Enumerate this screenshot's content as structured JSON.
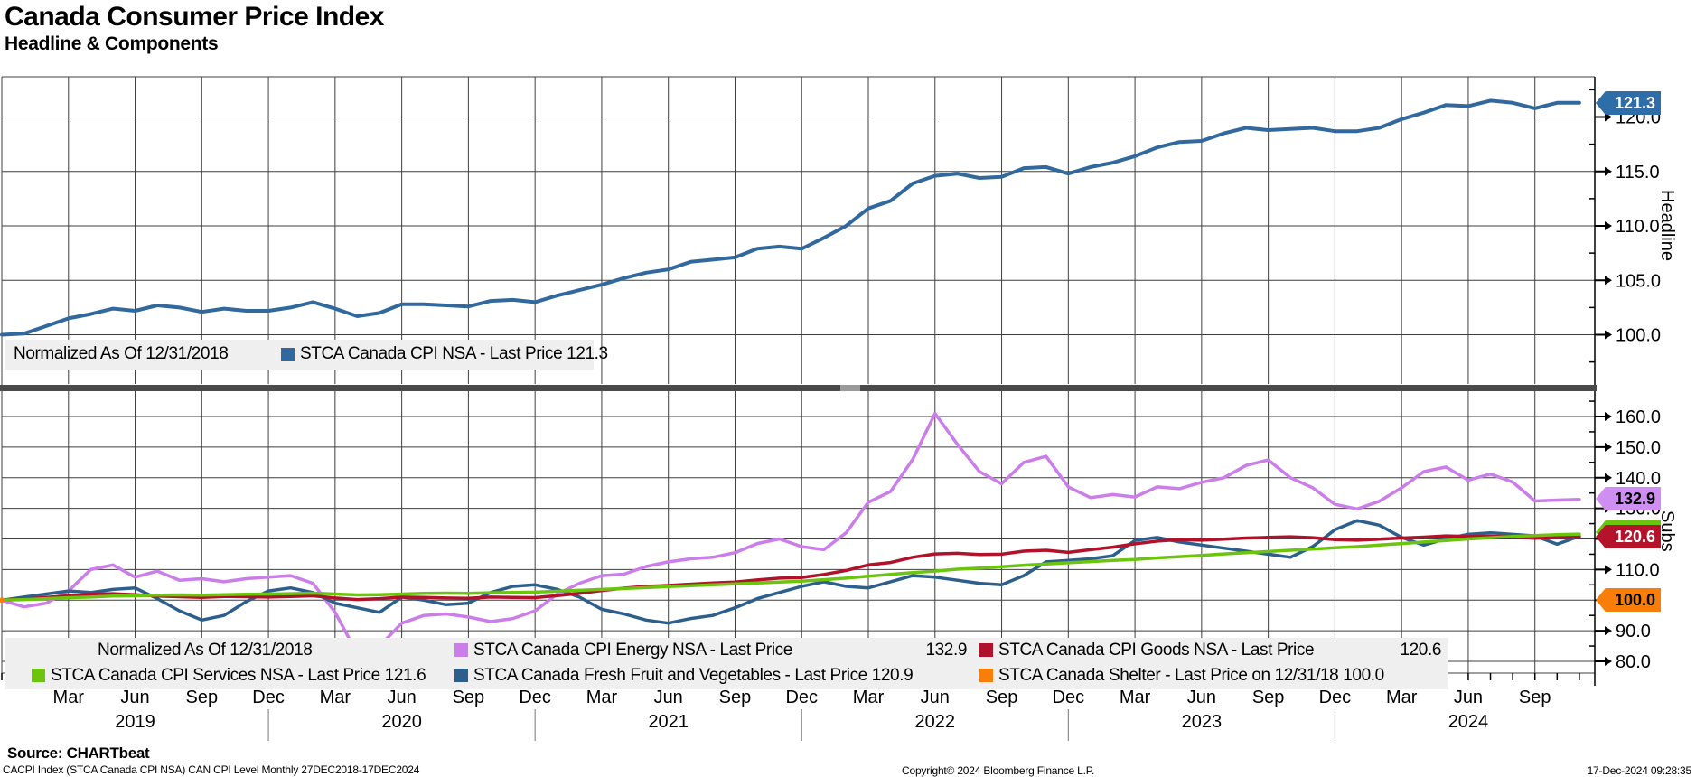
{
  "header": {
    "title": "Canada Consumer Price Index",
    "subtitle": "Headline & Components"
  },
  "top_panel": {
    "axis_label": "Headline",
    "last_price_badge": "121.3",
    "legend": {
      "normalized": "Normalized As Of 12/31/2018",
      "series_label": "STCA Canada CPI NSA - Last Price 121.3"
    }
  },
  "bottom_panel": {
    "axis_label": "Subs",
    "badges": {
      "energy": "132.9",
      "services": "121.6",
      "goods": "120.6",
      "shelter": "100.0"
    },
    "legend": {
      "normalized": "Normalized As Of 12/31/2018",
      "energy_label": "STCA Canada CPI Energy NSA - Last Price",
      "energy_value": "132.9",
      "goods_label": "STCA Canada CPI Goods NSA - Last Price",
      "goods_value": "120.6",
      "services_label": "STCA Canada CPI Services NSA - Last Price 121.6",
      "ffv_label": "STCA Canada Fresh Fruit and Vegetables - Last Price 120.9",
      "shelter_label": "STCA Canada Shelter - Last Price on 12/31/18 100.0"
    }
  },
  "footer": {
    "source": "Source: CHARTbeat",
    "ticker_line": "CACPI Index (STCA Canada CPI NSA) CAN CPI Level  Monthly 27DEC2018-17DEC2024",
    "copyright": "Copyright© 2024 Bloomberg Finance L.P.",
    "timestamp": "17-Dec-2024 09:28:35"
  },
  "colors": {
    "headline": "#31699e",
    "energy": "#cb7de9",
    "energy_badge": "#cf8ef2",
    "goods": "#b0122b",
    "services": "#6cc40e",
    "ffv": "#2d5f8d",
    "shelter": "#f87d09",
    "grid": "#3f3f3f",
    "legend_bg": "#efefef",
    "separator": "#4a4a4a"
  },
  "chart_data": [
    {
      "type": "line",
      "panel": "Headline",
      "x_start": "2018-12",
      "x_freq": "monthly",
      "n_points": 72,
      "ylim": [
        95.5,
        123.7
      ],
      "yticks": [
        100,
        105,
        110,
        115,
        120
      ],
      "grid": true,
      "legend_position": "bottom-left-inside",
      "series": [
        {
          "name": "STCA Canada CPI NSA",
          "last_price": 121.3,
          "values": [
            100.0,
            100.1,
            100.8,
            101.5,
            101.9,
            102.4,
            102.2,
            102.7,
            102.5,
            102.1,
            102.4,
            102.2,
            102.2,
            102.5,
            103.0,
            102.4,
            101.7,
            102.0,
            102.8,
            102.8,
            102.7,
            102.6,
            103.1,
            103.2,
            103.0,
            103.6,
            104.1,
            104.6,
            105.2,
            105.7,
            106.0,
            106.7,
            106.9,
            107.1,
            107.9,
            108.1,
            107.9,
            108.9,
            110.0,
            111.6,
            112.3,
            113.9,
            114.6,
            114.8,
            114.4,
            114.5,
            115.3,
            115.4,
            114.8,
            115.4,
            115.8,
            116.4,
            117.2,
            117.7,
            117.8,
            118.5,
            119.0,
            118.8,
            118.9,
            119.0,
            118.7,
            118.7,
            119.0,
            119.8,
            120.4,
            121.1,
            121.0,
            121.5,
            121.3,
            120.8,
            121.3,
            121.3
          ]
        }
      ]
    },
    {
      "type": "line",
      "panel": "Subs",
      "x_start": "2018-12",
      "x_freq": "monthly",
      "n_points": 72,
      "ylim": [
        76.2,
        169.2
      ],
      "yticks": [
        80,
        90,
        100,
        110,
        120,
        130,
        140,
        150,
        160
      ],
      "grid": true,
      "legend_position": "bottom-inside",
      "xticks_months": [
        "Mar",
        "Jun",
        "Sep",
        "Dec"
      ],
      "xticks_years": [
        "2019",
        "2020",
        "2021",
        "2022",
        "2023",
        "2024"
      ],
      "series": [
        {
          "name": "STCA Canada CPI Energy NSA",
          "last_price": 132.9,
          "values": [
            100.0,
            97.8,
            99.0,
            103.0,
            110.0,
            111.5,
            107.5,
            109.5,
            106.5,
            107.0,
            106.0,
            107.0,
            107.5,
            108.0,
            105.5,
            96.0,
            82.5,
            85.0,
            92.5,
            95.0,
            95.5,
            94.5,
            93.0,
            94.0,
            96.5,
            102.0,
            105.5,
            108.0,
            108.5,
            111.0,
            112.5,
            113.5,
            114.0,
            115.5,
            118.5,
            120.0,
            117.5,
            116.5,
            122.0,
            132.0,
            135.5,
            146.0,
            161.0,
            151.0,
            142.0,
            138.0,
            145.0,
            147.0,
            137.0,
            133.5,
            134.5,
            133.7,
            137.0,
            136.4,
            138.5,
            140.0,
            144.0,
            145.8,
            140.0,
            136.7,
            131.3,
            129.8,
            132.3,
            136.7,
            142.0,
            143.5,
            139.2,
            141.2,
            138.6,
            132.4,
            132.7,
            132.9
          ]
        },
        {
          "name": "STCA Canada CPI Goods NSA",
          "last_price": 120.6,
          "values": [
            100.0,
            100.3,
            100.9,
            101.4,
            101.9,
            102.1,
            101.8,
            101.3,
            101.1,
            100.9,
            101.2,
            101.1,
            101.0,
            101.2,
            101.4,
            100.7,
            100.2,
            100.5,
            101.0,
            100.9,
            100.7,
            100.6,
            101.0,
            100.9,
            100.8,
            101.5,
            102.2,
            103.1,
            103.9,
            104.5,
            104.8,
            105.2,
            105.6,
            105.9,
            106.6,
            107.2,
            107.4,
            108.4,
            109.7,
            111.5,
            112.3,
            114.0,
            115.1,
            115.3,
            114.9,
            115.0,
            116.0,
            116.3,
            115.6,
            116.5,
            117.3,
            118.4,
            119.3,
            119.8,
            119.6,
            119.9,
            120.3,
            120.5,
            120.7,
            120.4,
            119.8,
            119.6,
            119.9,
            120.3,
            120.6,
            121.0,
            120.8,
            120.9,
            120.7,
            120.2,
            120.5,
            120.6
          ]
        },
        {
          "name": "STCA Canada CPI Services NSA",
          "last_price": 121.6,
          "values": [
            100.0,
            100.2,
            100.5,
            100.8,
            101.0,
            101.3,
            101.4,
            101.6,
            101.7,
            101.6,
            101.8,
            101.9,
            102.0,
            102.1,
            102.3,
            102.0,
            101.7,
            101.8,
            102.0,
            102.2,
            102.3,
            102.2,
            102.4,
            102.5,
            102.6,
            102.9,
            103.2,
            103.5,
            103.8,
            104.1,
            104.4,
            104.7,
            105.0,
            105.3,
            105.6,
            105.9,
            106.2,
            106.7,
            107.2,
            107.8,
            108.4,
            109.0,
            109.5,
            110.1,
            110.5,
            110.9,
            111.4,
            111.8,
            112.2,
            112.6,
            113.0,
            113.3,
            113.8,
            114.2,
            114.6,
            115.1,
            115.5,
            115.9,
            116.3,
            116.7,
            117.1,
            117.5,
            118.0,
            118.5,
            119.0,
            119.5,
            120.0,
            120.4,
            120.8,
            121.1,
            121.4,
            121.6
          ]
        },
        {
          "name": "STCA Canada Fresh Fruit and Vegetables",
          "last_price": 120.9,
          "values": [
            100.0,
            101.0,
            102.0,
            103.0,
            102.5,
            103.5,
            104.0,
            100.5,
            96.5,
            93.5,
            95.0,
            99.5,
            103.0,
            104.0,
            102.5,
            99.0,
            97.5,
            96.0,
            101.0,
            100.0,
            98.5,
            99.0,
            102.5,
            104.5,
            105.0,
            103.5,
            101.0,
            97.0,
            95.5,
            93.5,
            92.5,
            94.0,
            95.0,
            97.5,
            100.5,
            102.5,
            104.5,
            106.0,
            104.5,
            104.0,
            106.0,
            108.0,
            107.5,
            106.5,
            105.5,
            105.0,
            108.0,
            112.5,
            113.0,
            113.5,
            114.5,
            119.5,
            120.5,
            119.0,
            118.0,
            117.0,
            116.0,
            115.0,
            114.0,
            117.5,
            123.0,
            126.0,
            124.5,
            120.5,
            118.0,
            120.0,
            121.5,
            122.0,
            121.5,
            121.0,
            118.3,
            120.9
          ]
        },
        {
          "name": "STCA Canada Shelter",
          "last_price_on_12_31_18": 100.0,
          "values": [
            100.0
          ]
        }
      ]
    }
  ]
}
